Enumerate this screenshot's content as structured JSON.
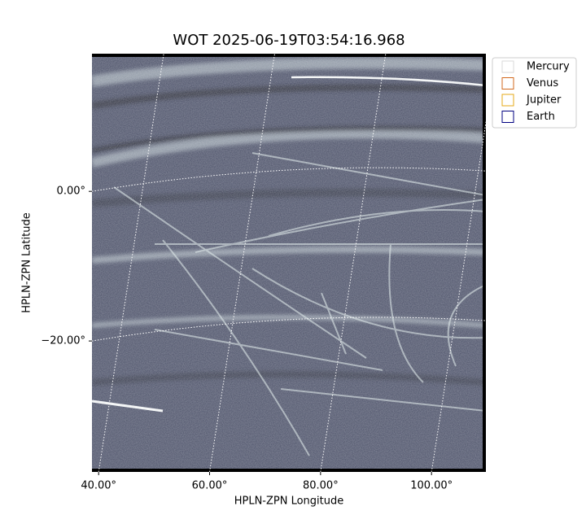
{
  "chart_data": {
    "type": "image",
    "title": "WOT 2025-06-19T03:54:16.968",
    "xlabel": "HPLN-ZPN Longitude",
    "ylabel": "HPLN-ZPN Latitude",
    "xlim": [
      38.8,
      109.8
    ],
    "ylim": [
      -37.5,
      18.4
    ],
    "xticks": [
      {
        "value": 40,
        "label": "40.00°"
      },
      {
        "value": 60,
        "label": "60.00°"
      },
      {
        "value": 80,
        "label": "80.00°"
      },
      {
        "value": 100,
        "label": "100.00°"
      }
    ],
    "yticks": [
      {
        "value": 0,
        "label": "0.00°"
      },
      {
        "value": -20,
        "label": "−20.00°"
      }
    ],
    "grid": true,
    "legend_position": "upper-right-outside",
    "legend": [
      {
        "name": "Mercury",
        "color": "#d9d9d9"
      },
      {
        "name": "Venus",
        "color": "#d2691e"
      },
      {
        "name": "Jupiter",
        "color": "#e6a817"
      },
      {
        "name": "Earth",
        "color": "#000080"
      }
    ]
  }
}
